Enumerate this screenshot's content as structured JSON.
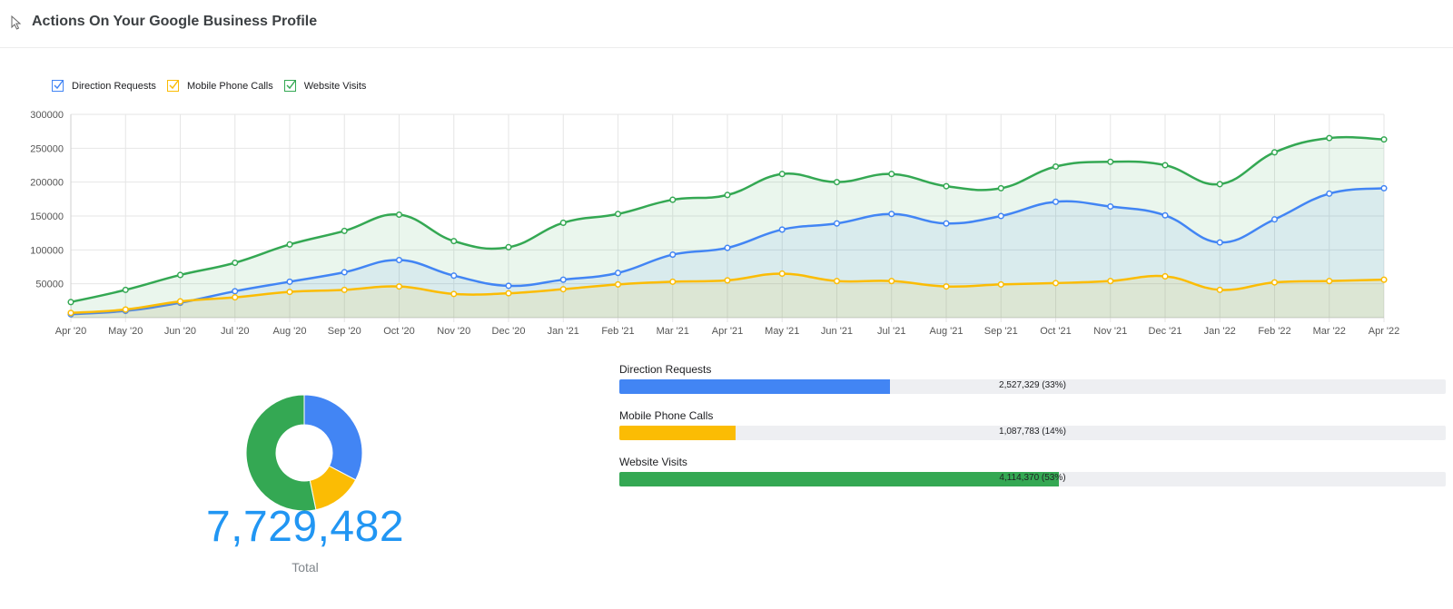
{
  "header": {
    "title": "Actions On Your Google Business Profile"
  },
  "colors": {
    "direction": "#4285f4",
    "calls": "#fbbc04",
    "website": "#34a853"
  },
  "legend": [
    {
      "label": "Direction Requests",
      "color": "#4285f4"
    },
    {
      "label": "Mobile Phone Calls",
      "color": "#fbbc04"
    },
    {
      "label": "Website Visits",
      "color": "#34a853"
    }
  ],
  "chart_data": {
    "type": "area",
    "x": [
      "Apr '20",
      "May '20",
      "Jun '20",
      "Jul '20",
      "Aug '20",
      "Sep '20",
      "Oct '20",
      "Nov '20",
      "Dec '20",
      "Jan '21",
      "Feb '21",
      "Mar '21",
      "Apr '21",
      "May '21",
      "Jun '21",
      "Jul '21",
      "Aug '21",
      "Sep '21",
      "Oct '21",
      "Nov '21",
      "Dec '21",
      "Jan '22",
      "Feb '22",
      "Mar '22",
      "Apr '22"
    ],
    "yticks": [
      50000,
      100000,
      150000,
      200000,
      250000,
      300000
    ],
    "ylim": [
      0,
      300000
    ],
    "grid": true,
    "legend_position": "top-left",
    "series": [
      {
        "name": "Website Visits",
        "color": "#34a853",
        "values": [
          23000,
          41000,
          63000,
          81000,
          108000,
          128000,
          152000,
          113000,
          104000,
          140000,
          153000,
          174000,
          181000,
          212000,
          200000,
          212000,
          194000,
          191000,
          223000,
          230000,
          225000,
          197000,
          244000,
          265000,
          263000
        ]
      },
      {
        "name": "Direction Requests",
        "color": "#4285f4",
        "values": [
          5000,
          10000,
          22000,
          39000,
          53000,
          67000,
          85000,
          62000,
          47000,
          56000,
          66000,
          93000,
          103000,
          130000,
          139000,
          153000,
          139000,
          150000,
          171000,
          164000,
          151000,
          111000,
          145000,
          183000,
          191000
        ]
      },
      {
        "name": "Mobile Phone Calls",
        "color": "#fbbc04",
        "values": [
          7000,
          12000,
          24000,
          30000,
          38000,
          41000,
          46000,
          35000,
          36000,
          42000,
          49000,
          53000,
          55000,
          65000,
          54000,
          54000,
          46000,
          49000,
          51000,
          54000,
          61000,
          41000,
          52000,
          54000,
          56000
        ]
      }
    ]
  },
  "breakdown": {
    "total": "7,729,482",
    "total_label": "Total",
    "items": [
      {
        "label": "Direction Requests",
        "value": 2527329,
        "display": "2,527,329 (33%)",
        "fraction": 0.327,
        "color": "#4285f4"
      },
      {
        "label": "Mobile Phone Calls",
        "value": 1087783,
        "display": "1,087,783 (14%)",
        "fraction": 0.141,
        "color": "#fbbc04"
      },
      {
        "label": "Website Visits",
        "value": 4114370,
        "display": "4,114,370 (53%)",
        "fraction": 0.532,
        "color": "#34a853"
      }
    ]
  }
}
